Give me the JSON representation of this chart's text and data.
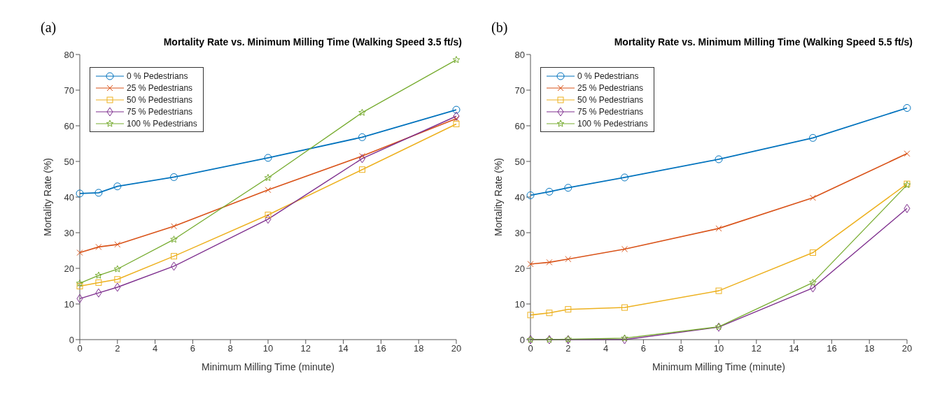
{
  "chart_data": [
    {
      "type": "line",
      "annotations": [
        "(a)"
      ],
      "title": "Mortality Rate vs. Minimum Milling Time (Walking Speed 3.5 ft/s)",
      "xlabel": "Minimum Milling Time (minute)",
      "ylabel": "Mortality Rate (%)",
      "x": [
        0,
        1,
        2,
        5,
        10,
        15,
        20
      ],
      "xlim": [
        0,
        20
      ],
      "xticks": [
        0,
        2,
        4,
        6,
        8,
        10,
        12,
        14,
        16,
        18,
        20
      ],
      "ylim": [
        0,
        80
      ],
      "yticks": [
        0,
        10,
        20,
        30,
        40,
        50,
        60,
        70,
        80
      ],
      "grid": false,
      "legend": "top left",
      "line_style": "solid",
      "series": [
        {
          "name": "0 % Pedestrians",
          "color": "#0072bd",
          "marker": "circle",
          "values": [
            41,
            41.2,
            43,
            45.6,
            51,
            56.8,
            64.5
          ]
        },
        {
          "name": "25 % Pedestrians",
          "color": "#d95319",
          "marker": "cross",
          "values": [
            24.4,
            26,
            26.7,
            31.8,
            42,
            51.5,
            62
          ]
        },
        {
          "name": "50 % Pedestrians",
          "color": "#edb120",
          "marker": "square",
          "values": [
            15,
            16,
            16.9,
            23.4,
            35,
            47.7,
            60.5
          ]
        },
        {
          "name": "75 % Pedestrians",
          "color": "#7e2f8e",
          "marker": "diamond",
          "values": [
            11.5,
            13.1,
            14.7,
            20.6,
            33.8,
            50.8,
            62.7
          ]
        },
        {
          "name": "100 % Pedestrians",
          "color": "#77ac30",
          "marker": "star",
          "values": [
            15.8,
            18,
            19.8,
            28.1,
            45.4,
            63.7,
            78.5
          ]
        }
      ]
    },
    {
      "type": "line",
      "annotations": [
        "(b)"
      ],
      "title": "Mortality Rate vs. Minimum Milling Time (Walking Speed 5.5 ft/s)",
      "xlabel": "Minimum Milling Time (minute)",
      "ylabel": "Mortality Rate (%)",
      "x": [
        0,
        1,
        2,
        5,
        10,
        15,
        20
      ],
      "xlim": [
        0,
        20
      ],
      "xticks": [
        0,
        2,
        4,
        6,
        8,
        10,
        12,
        14,
        16,
        18,
        20
      ],
      "ylim": [
        0,
        80
      ],
      "yticks": [
        0,
        10,
        20,
        30,
        40,
        50,
        60,
        70,
        80
      ],
      "grid": false,
      "legend": "top left",
      "line_style": "solid",
      "series": [
        {
          "name": "0 % Pedestrians",
          "color": "#0072bd",
          "marker": "circle",
          "values": [
            40.5,
            41.5,
            42.6,
            45.5,
            50.6,
            56.6,
            65
          ]
        },
        {
          "name": "25 % Pedestrians",
          "color": "#d95319",
          "marker": "cross",
          "values": [
            21.2,
            21.7,
            22.6,
            25.4,
            31.2,
            39.8,
            52.2
          ]
        },
        {
          "name": "50 % Pedestrians",
          "color": "#edb120",
          "marker": "square",
          "values": [
            6.9,
            7.5,
            8.5,
            9,
            13.7,
            24.4,
            43.7
          ]
        },
        {
          "name": "75 % Pedestrians",
          "color": "#7e2f8e",
          "marker": "diamond",
          "values": [
            0,
            0,
            0,
            0,
            3.5,
            14.5,
            36.8
          ]
        },
        {
          "name": "100 % Pedestrians",
          "color": "#77ac30",
          "marker": "star",
          "values": [
            0,
            0,
            0.1,
            0.4,
            3.6,
            16,
            43.4
          ]
        }
      ]
    }
  ]
}
